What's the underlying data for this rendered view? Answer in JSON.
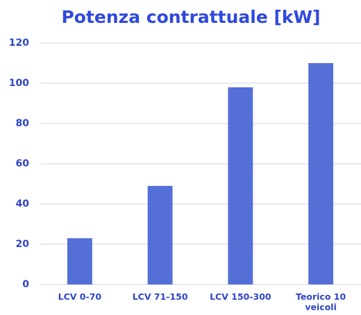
{
  "chart_data": {
    "type": "bar",
    "title": "Potenza contrattuale [kW]",
    "categories": [
      "LCV 0-70",
      "LCV 71-150",
      "LCV 150-300",
      "Teorico 10 veicoli"
    ],
    "values": [
      23,
      49,
      98,
      110
    ],
    "color": "#5470d6",
    "ylim": [
      0,
      120
    ],
    "yticks": [
      0,
      20,
      40,
      60,
      80,
      100,
      120
    ],
    "grid": true
  }
}
